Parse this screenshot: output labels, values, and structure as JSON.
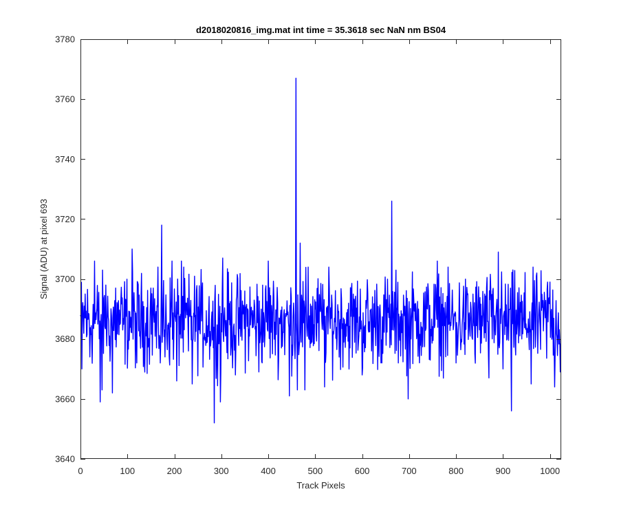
{
  "chart_data": {
    "type": "line",
    "title": "d2018020816_img.mat int time = 35.3618 sec  NaN nm BS04",
    "xlabel": "Track Pixels",
    "ylabel": "Signal (ADU) at pixel 693",
    "xlim": [
      0,
      1024
    ],
    "ylim": [
      3640,
      3780
    ],
    "xticks": [
      0,
      100,
      200,
      300,
      400,
      500,
      600,
      700,
      800,
      900,
      1000
    ],
    "yticks": [
      3640,
      3660,
      3680,
      3700,
      3720,
      3740,
      3760,
      3780
    ],
    "grid": false,
    "legend": "none",
    "line_color": "#0000ff",
    "noise": {
      "baseline": 3686,
      "amplitude": 8,
      "seed": 12345
    },
    "series": [
      {
        "anchor_points": [
          [
            0,
            3688
          ],
          [
            3,
            3670
          ],
          [
            10,
            3695
          ],
          [
            20,
            3674
          ],
          [
            30,
            3706
          ],
          [
            38,
            3688
          ],
          [
            42,
            3659
          ],
          [
            46,
            3663
          ],
          [
            54,
            3698
          ],
          [
            62,
            3681
          ],
          [
            68,
            3662
          ],
          [
            75,
            3697
          ],
          [
            90,
            3683
          ],
          [
            110,
            3710
          ],
          [
            120,
            3672
          ],
          [
            140,
            3681
          ],
          [
            150,
            3697
          ],
          [
            155,
            3697
          ],
          [
            162,
            3677
          ],
          [
            170,
            3672
          ],
          [
            173,
            3718
          ],
          [
            180,
            3674
          ],
          [
            195,
            3706
          ],
          [
            205,
            3666
          ],
          [
            215,
            3706
          ],
          [
            230,
            3676
          ],
          [
            238,
            3665
          ],
          [
            258,
            3686
          ],
          [
            270,
            3679
          ],
          [
            285,
            3652
          ],
          [
            290,
            3674
          ],
          [
            298,
            3659
          ],
          [
            303,
            3707
          ],
          [
            330,
            3668
          ],
          [
            350,
            3696
          ],
          [
            380,
            3669
          ],
          [
            400,
            3706
          ],
          [
            420,
            3692
          ],
          [
            445,
            3661
          ],
          [
            455,
            3688
          ],
          [
            459,
            3767
          ],
          [
            462,
            3663
          ],
          [
            468,
            3712
          ],
          [
            478,
            3663
          ],
          [
            485,
            3704
          ],
          [
            500,
            3690
          ],
          [
            520,
            3664
          ],
          [
            560,
            3687
          ],
          [
            600,
            3668
          ],
          [
            620,
            3676
          ],
          [
            660,
            3683
          ],
          [
            663,
            3726
          ],
          [
            668,
            3686
          ],
          [
            698,
            3660
          ],
          [
            720,
            3690
          ],
          [
            760,
            3706
          ],
          [
            800,
            3672
          ],
          [
            840,
            3675
          ],
          [
            870,
            3667
          ],
          [
            890,
            3709
          ],
          [
            900,
            3670
          ],
          [
            918,
            3656
          ],
          [
            940,
            3680
          ],
          [
            960,
            3665
          ],
          [
            995,
            3699
          ],
          [
            1000,
            3699
          ],
          [
            1010,
            3664
          ],
          [
            1022,
            3669
          ]
        ]
      }
    ]
  }
}
